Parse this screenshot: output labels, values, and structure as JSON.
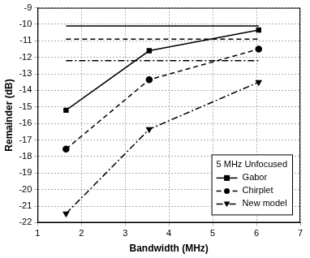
{
  "chart_data": {
    "type": "line",
    "x_label": "Bandwidth (MHz)",
    "y_label": "Remainder (dB)",
    "legend_title": "5 MHz Unfocused",
    "x": [
      1.65,
      3.55,
      6.05
    ],
    "series": [
      {
        "name": "Gabor",
        "color": "#000000",
        "marker": "square",
        "line_style": "solid",
        "values": [
          -15.2,
          -11.6,
          -10.35
        ]
      },
      {
        "name": "Chirplet",
        "color": "#000000",
        "marker": "circle",
        "line_style": "dashed",
        "values": [
          -17.55,
          -13.35,
          -11.5
        ]
      },
      {
        "name": "New model",
        "color": "#000000",
        "marker": "triangle_down",
        "line_style": "dashdot",
        "values": [
          -21.45,
          -16.35,
          -13.5
        ]
      }
    ],
    "reference_lines": [
      {
        "color": "#000000",
        "line_style": "solid",
        "x": [
          1.65,
          6.05
        ],
        "values": [
          -10.1,
          -10.1
        ]
      },
      {
        "color": "#000000",
        "line_style": "dashed",
        "x": [
          1.65,
          6.05
        ],
        "values": [
          -10.9,
          -10.9
        ]
      },
      {
        "color": "#000000",
        "line_style": "dashdot",
        "x": [
          1.65,
          6.05
        ],
        "values": [
          -12.2,
          -12.2
        ]
      }
    ],
    "xlim": [
      1,
      7
    ],
    "xticks": [
      1,
      2,
      3,
      4,
      5,
      6,
      7
    ],
    "ylim": [
      -22,
      -9
    ],
    "yticks": [
      -22,
      -21,
      -20,
      -19,
      -18,
      -17,
      -16,
      -15,
      -14,
      -13,
      -12,
      -11,
      -10,
      -9
    ],
    "grid": true,
    "legend": "lower right"
  }
}
